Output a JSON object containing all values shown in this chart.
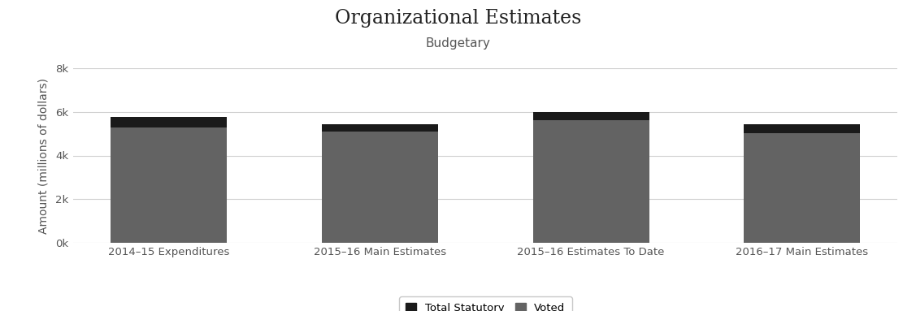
{
  "title": "Organizational Estimates",
  "subtitle": "Budgetary",
  "ylabel": "Amount (millions of dollars)",
  "categories": [
    "2014–15 Expenditures",
    "2015–16 Main Estimates",
    "2015–16 Estimates To Date",
    "2016–17 Main Estimates"
  ],
  "voted": [
    5280,
    5090,
    5640,
    5040
  ],
  "statutory": [
    510,
    360,
    370,
    400
  ],
  "voted_color": "#636363",
  "statutory_color": "#1a1a1a",
  "background_color": "#ffffff",
  "plot_bg_color": "#ffffff",
  "ylim": [
    0,
    8000
  ],
  "yticks": [
    0,
    2000,
    4000,
    6000,
    8000
  ],
  "ytick_labels": [
    "0k",
    "2k",
    "4k",
    "6k",
    "8k"
  ],
  "grid_color": "#d0d0d0",
  "legend_labels": [
    "Total Statutory",
    "Voted"
  ],
  "title_fontsize": 17,
  "subtitle_fontsize": 11,
  "ylabel_fontsize": 10,
  "tick_fontsize": 9.5,
  "bar_width": 0.55
}
